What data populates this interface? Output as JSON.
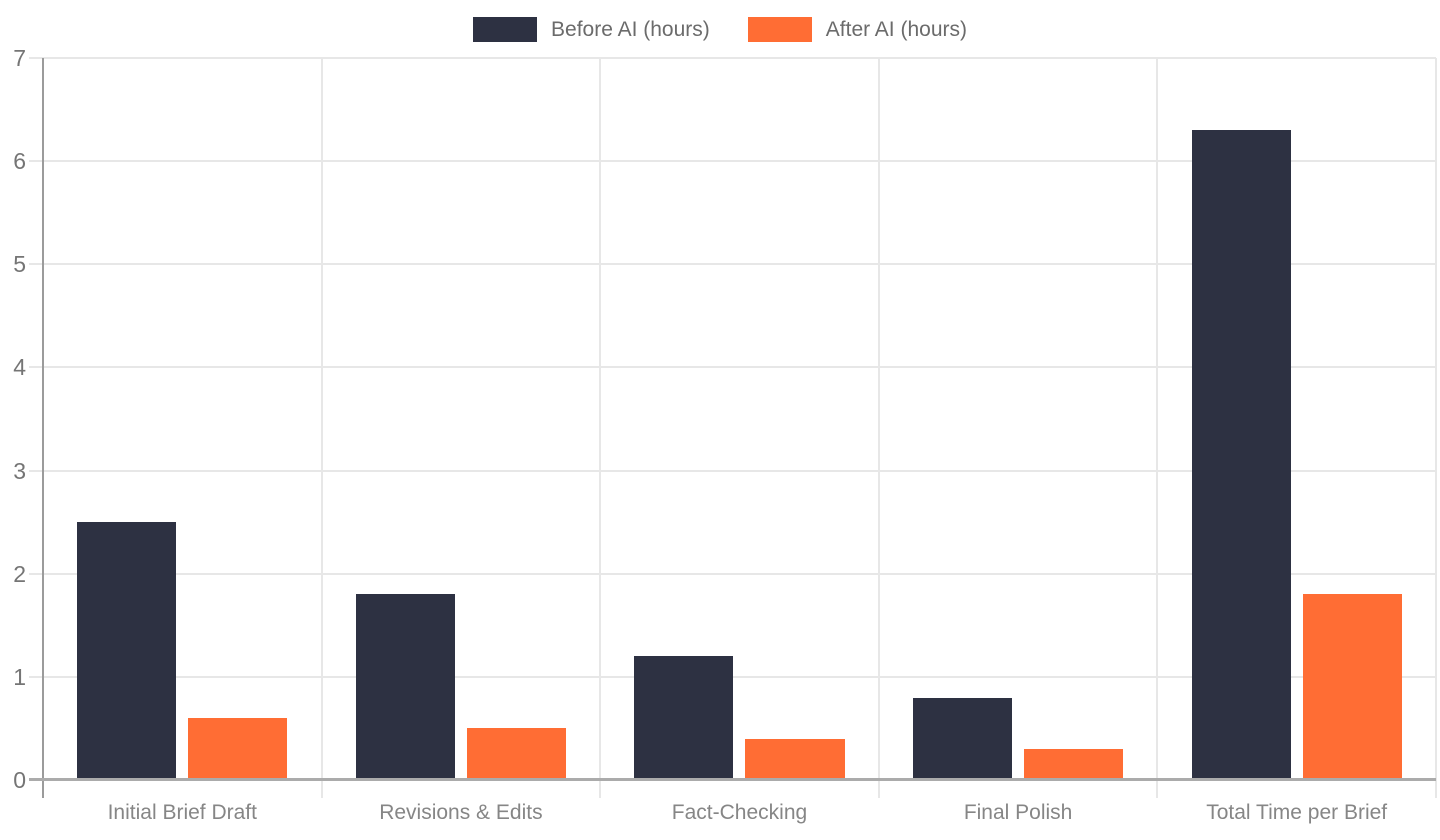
{
  "chart_data": {
    "type": "bar",
    "title": "",
    "categories": [
      "Initial Brief Draft",
      "Revisions & Edits",
      "Fact-Checking",
      "Final Polish",
      "Total Time per Brief"
    ],
    "series": [
      {
        "name": "Before AI (hours)",
        "color": "#2d3142",
        "values": [
          2.5,
          1.8,
          1.2,
          0.8,
          6.3
        ]
      },
      {
        "name": "After AI (hours)",
        "color": "#ff6d34",
        "values": [
          0.6,
          0.5,
          0.4,
          0.3,
          1.8
        ]
      }
    ],
    "xlabel": "",
    "ylabel": "",
    "ylim": [
      0,
      7
    ],
    "yticks": [
      0,
      1,
      2,
      3,
      4,
      5,
      6,
      7
    ],
    "grid": true,
    "legend_position": "top-center",
    "colors": {
      "background": "#ffffff",
      "grid_line": "#e7e7e7",
      "y_axis_line": "#9b9b9b",
      "x_axis_line": "#ababab",
      "y_tick_text": "#757575",
      "category_text": "#868686",
      "legend_text": "#6b6b6b"
    }
  }
}
